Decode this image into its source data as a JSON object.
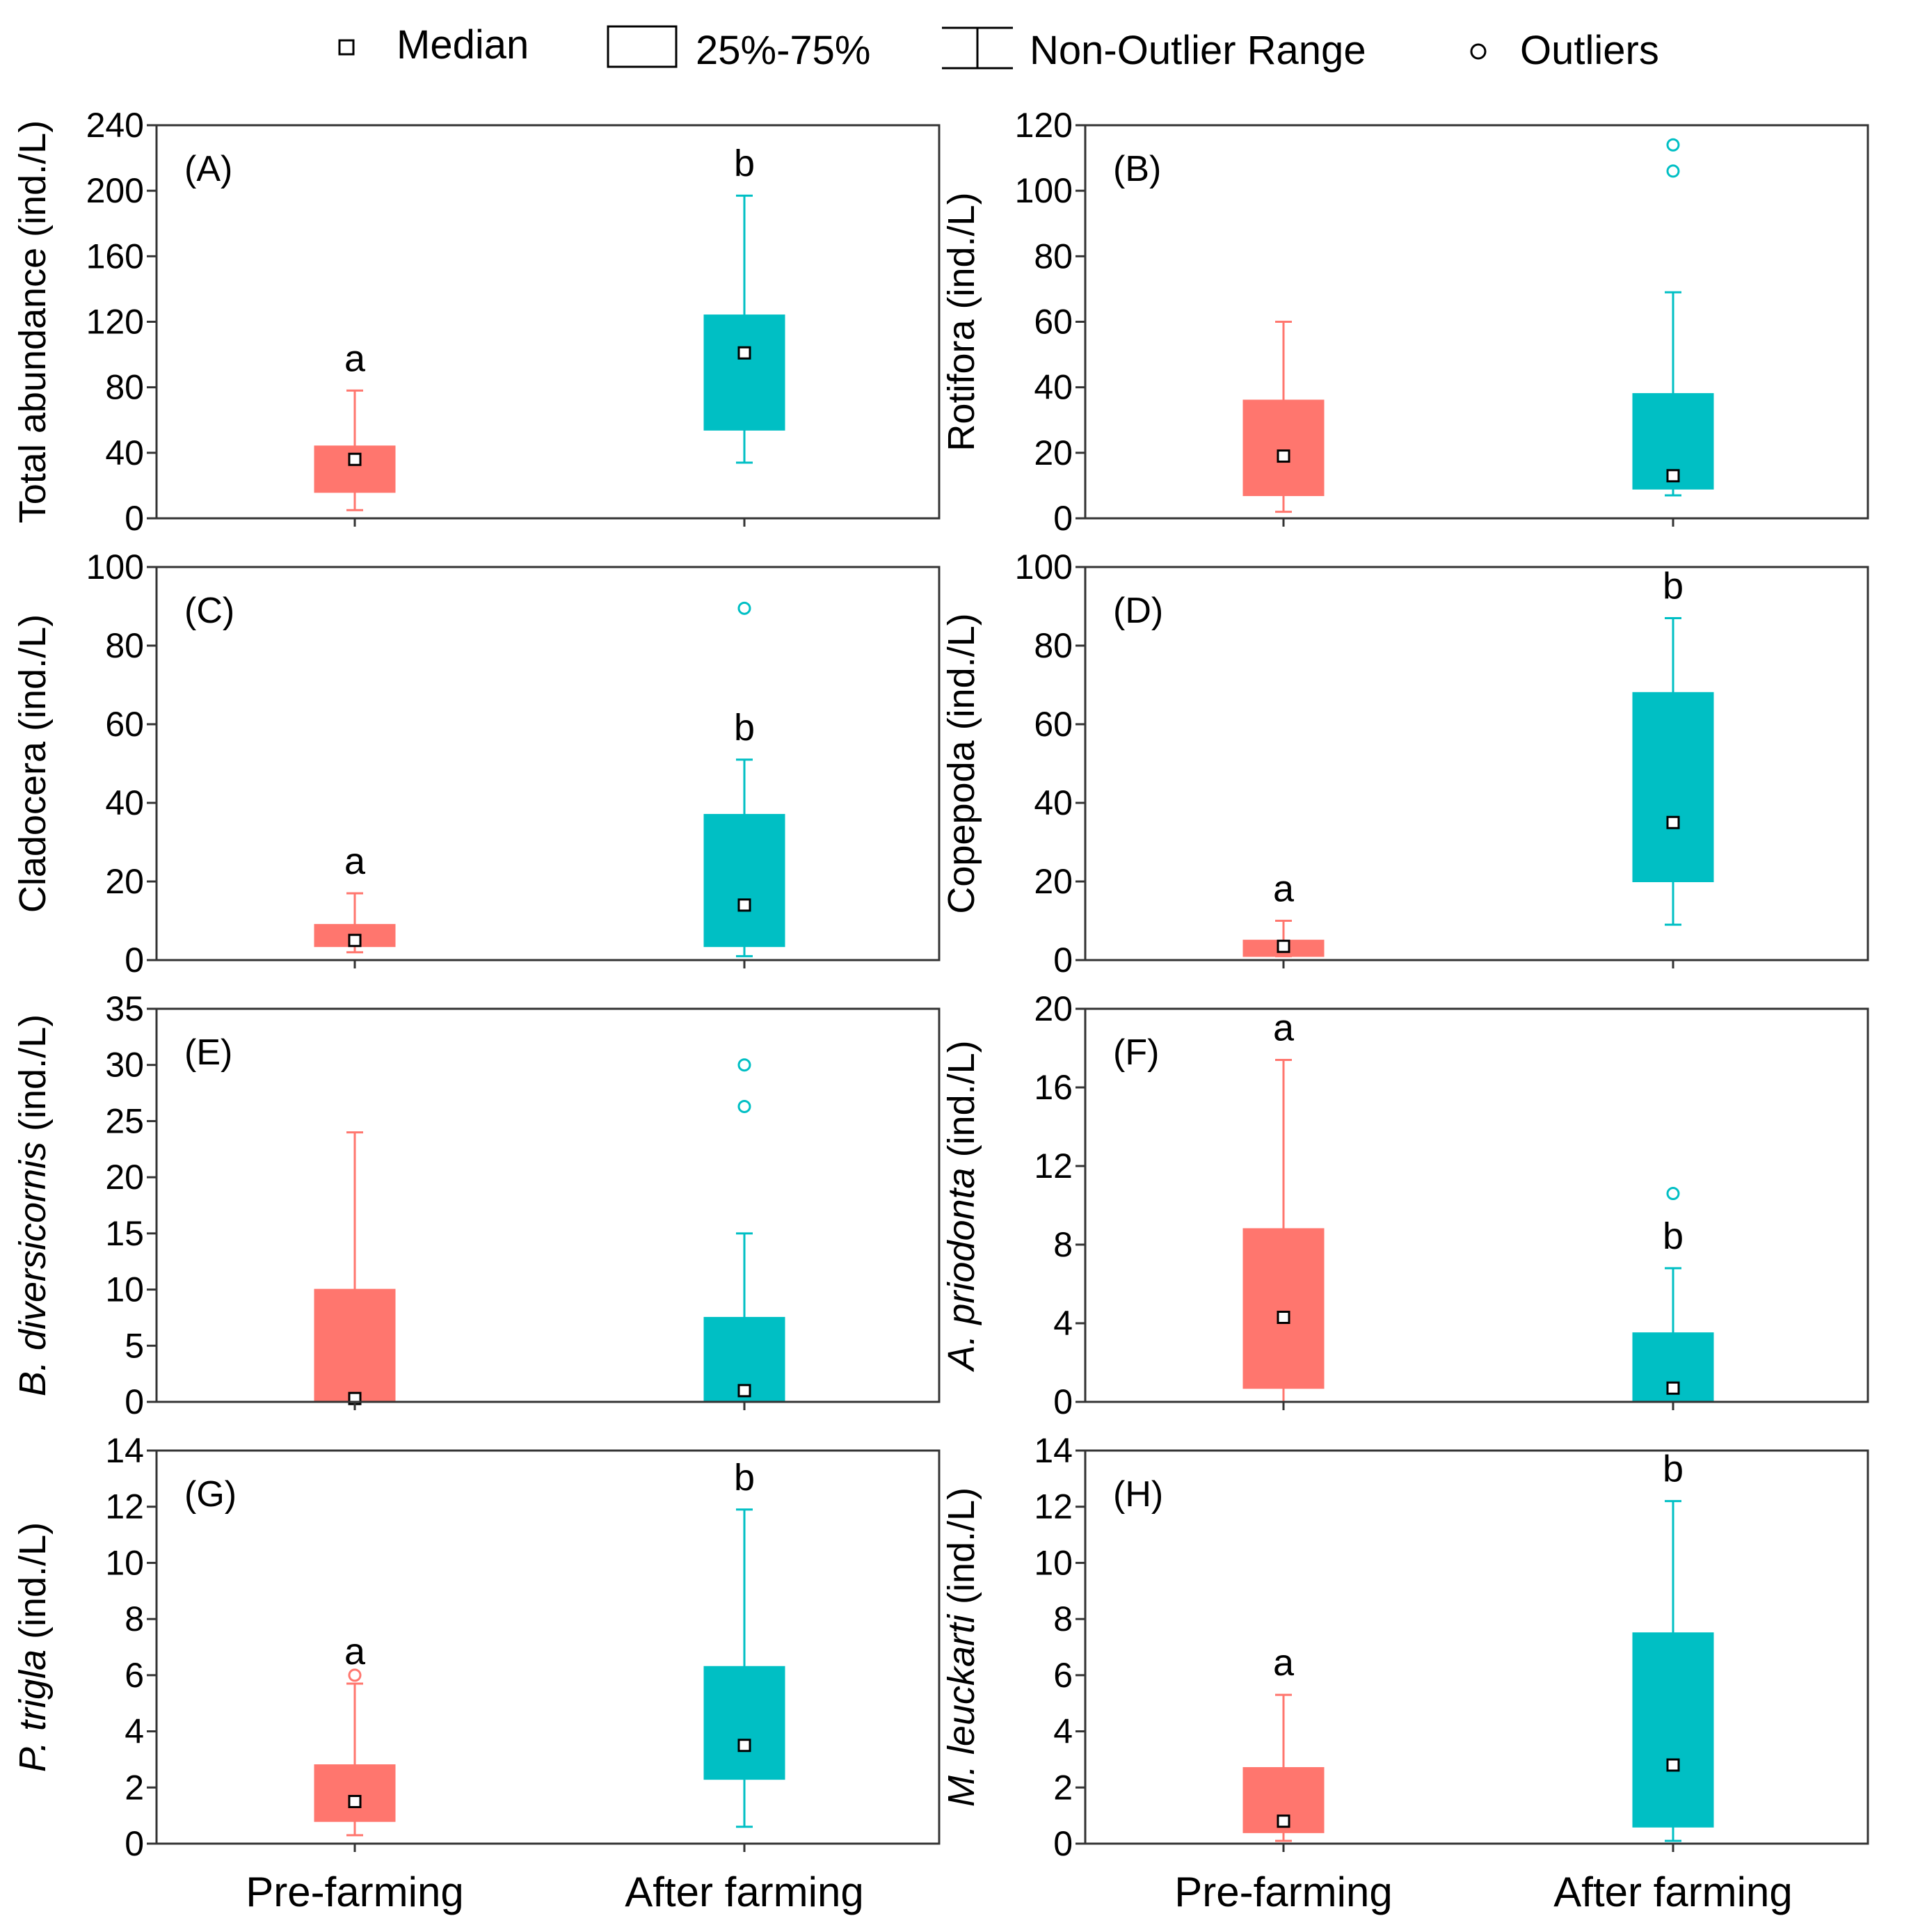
{
  "legend": {
    "median": "Median",
    "iqr": "25%-75%",
    "range": "Non-Outlier Range",
    "outliers": "Outliers"
  },
  "colors": {
    "pre": "#ff766e",
    "after": "#00bfc4"
  },
  "chart_data": {
    "type": "box",
    "categories": [
      "Pre-farming",
      "After farming"
    ],
    "panels": [
      {
        "label": "(A)",
        "ylabel": [
          {
            "t": "Total abundance (ind./L)",
            "i": false
          }
        ],
        "ylim": [
          0,
          240
        ],
        "ticks": [
          0,
          40,
          80,
          120,
          160,
          200,
          240
        ],
        "boxes": [
          {
            "min": 5,
            "q1": 16,
            "median": 36,
            "q3": 44,
            "max": 78,
            "outliers": [],
            "sig": "a"
          },
          {
            "min": 34,
            "q1": 54,
            "median": 101,
            "q3": 124,
            "max": 197,
            "outliers": [],
            "sig": "b"
          }
        ]
      },
      {
        "label": "(B)",
        "ylabel": [
          {
            "t": "Rotifora (ind./L)",
            "i": false
          }
        ],
        "ylim": [
          0,
          120
        ],
        "ticks": [
          0,
          20,
          40,
          60,
          80,
          100,
          120
        ],
        "boxes": [
          {
            "min": 2,
            "q1": 7,
            "median": 19,
            "q3": 36,
            "max": 60,
            "outliers": [],
            "sig": ""
          },
          {
            "min": 7,
            "q1": 9,
            "median": 13,
            "q3": 38,
            "max": 69,
            "outliers": [
              106,
              114
            ],
            "sig": ""
          }
        ]
      },
      {
        "label": "(C)",
        "ylabel": [
          {
            "t": "Cladocera (ind./L)",
            "i": false
          }
        ],
        "ylim": [
          0,
          100
        ],
        "ticks": [
          0,
          20,
          40,
          60,
          80,
          100
        ],
        "boxes": [
          {
            "min": 2,
            "q1": 3.5,
            "median": 5,
            "q3": 9,
            "max": 17,
            "outliers": [],
            "sig": "a"
          },
          {
            "min": 1,
            "q1": 3.5,
            "median": 14,
            "q3": 37,
            "max": 51,
            "outliers": [
              89.5
            ],
            "sig": "b"
          }
        ]
      },
      {
        "label": "(D)",
        "ylabel": [
          {
            "t": "Copepoda (ind./L)",
            "i": false
          }
        ],
        "ylim": [
          0,
          100
        ],
        "ticks": [
          0,
          20,
          40,
          60,
          80,
          100
        ],
        "boxes": [
          {
            "min": 1,
            "q1": 1,
            "median": 3.5,
            "q3": 5,
            "max": 10,
            "outliers": [],
            "sig": "a"
          },
          {
            "min": 9,
            "q1": 20,
            "median": 35,
            "q3": 68,
            "max": 87,
            "outliers": [],
            "sig": "b"
          }
        ]
      },
      {
        "label": "(E)",
        "ylabel": [
          {
            "t": "B. diversicornis",
            "i": true
          },
          {
            "t": " (ind./L)",
            "i": false
          }
        ],
        "ylim": [
          0,
          35
        ],
        "ticks": [
          0,
          5,
          10,
          15,
          20,
          25,
          30,
          35
        ],
        "boxes": [
          {
            "min": 0,
            "q1": 0,
            "median": 0.3,
            "q3": 10,
            "max": 24,
            "outliers": [],
            "sig": ""
          },
          {
            "min": 0,
            "q1": 0,
            "median": 1,
            "q3": 7.5,
            "max": 15,
            "outliers": [
              26.3,
              30
            ],
            "sig": ""
          }
        ]
      },
      {
        "label": "(F)",
        "ylabel": [
          {
            "t": "A. priodonta",
            "i": true
          },
          {
            "t": " (ind./L)",
            "i": false
          }
        ],
        "ylim": [
          0,
          20
        ],
        "ticks": [
          0,
          4,
          8,
          12,
          16,
          20
        ],
        "boxes": [
          {
            "min": 0,
            "q1": 0.7,
            "median": 4.3,
            "q3": 8.8,
            "max": 17.4,
            "outliers": [],
            "sig": "a"
          },
          {
            "min": 0,
            "q1": 0,
            "median": 0.7,
            "q3": 3.5,
            "max": 6.8,
            "outliers": [
              10.6
            ],
            "sig": "b"
          }
        ]
      },
      {
        "label": "(G)",
        "ylabel": [
          {
            "t": "P. trigla",
            "i": true
          },
          {
            "t": " (ind./L)",
            "i": false
          }
        ],
        "ylim": [
          0,
          14
        ],
        "ticks": [
          0,
          2,
          4,
          6,
          8,
          10,
          12,
          14
        ],
        "boxes": [
          {
            "min": 0.3,
            "q1": 0.8,
            "median": 1.5,
            "q3": 2.8,
            "max": 5.7,
            "outliers": [
              6
            ],
            "sig": "a"
          },
          {
            "min": 0.6,
            "q1": 2.3,
            "median": 3.5,
            "q3": 6.3,
            "max": 11.9,
            "outliers": [],
            "sig": "b"
          }
        ]
      },
      {
        "label": "(H)",
        "ylabel": [
          {
            "t": "M. leuckarti",
            "i": true
          },
          {
            "t": " (ind./L)",
            "i": false
          }
        ],
        "ylim": [
          0,
          14
        ],
        "ticks": [
          0,
          2,
          4,
          6,
          8,
          10,
          12,
          14
        ],
        "boxes": [
          {
            "min": 0.1,
            "q1": 0.4,
            "median": 0.8,
            "q3": 2.7,
            "max": 5.3,
            "outliers": [],
            "sig": "a"
          },
          {
            "min": 0.1,
            "q1": 0.6,
            "median": 2.8,
            "q3": 7.5,
            "max": 12.2,
            "outliers": [],
            "sig": "b"
          }
        ]
      }
    ]
  }
}
